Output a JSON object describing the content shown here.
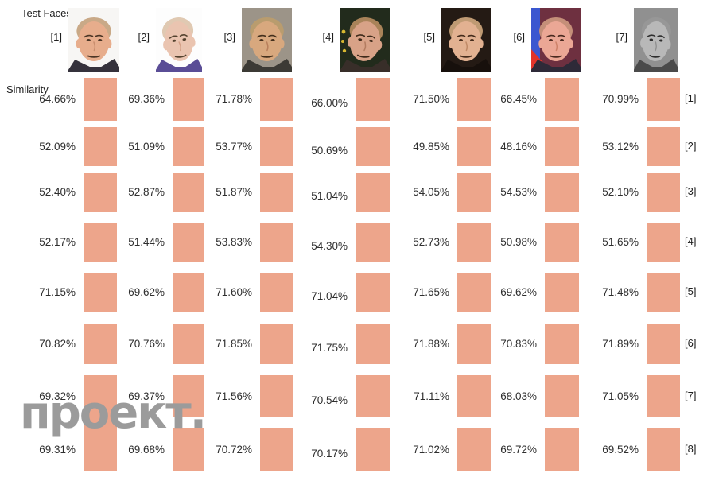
{
  "header": {
    "title": "Test Faces",
    "similarity_label": "Similarity"
  },
  "watermark": {
    "text": "проект.",
    "color": "#9b9b9b"
  },
  "colors": {
    "cell_box": "#EDA58B",
    "value_text": "#2e2e2e",
    "label_text": "#1f1f1f",
    "background": "#ffffff"
  },
  "faces": [
    {
      "label": "[1]",
      "bg": "#f7f6f4",
      "skin": "#e7ad8c",
      "hair": "#c9a987",
      "feature": "#4c3626",
      "shade": "#c98e6e",
      "suit": "#35323c",
      "tilt": 0
    },
    {
      "label": "[2]",
      "bg": "#fdfdfd",
      "skin": "#eac4b0",
      "hair": "#e0c9b2",
      "feature": "#54422f",
      "shade": "#d3a087",
      "suit": "#5a4d96",
      "tilt": -7
    },
    {
      "label": "[3]",
      "bg": "#9c9488",
      "skin": "#d8a87e",
      "hair": "#b99c6e",
      "feature": "#44301d",
      "shade": "#b9805c",
      "suit": "#3c3a35",
      "tilt": 0
    },
    {
      "label": "[4]",
      "bg": "#222b1c",
      "skin": "#d8a287",
      "hair": "#a98359",
      "feature": "#3f2b1b",
      "shade": "#b37c60",
      "suit": "#382e29",
      "tilt": 7,
      "accent_dots": "#d8b830"
    },
    {
      "label": "[5]",
      "bg": "#241a14",
      "skin": "#e2b191",
      "hair": "#bf9a73",
      "feature": "#452c1c",
      "shade": "#c08a67",
      "suit": "#17100c",
      "tilt": 0
    },
    {
      "label": "[6]",
      "bg": "#6e3040",
      "side": "#3b57d0",
      "accent": "#e2342b",
      "skin": "#eba795",
      "hair": "#c58f79",
      "feature": "#4a2a20",
      "shade": "#ce8269",
      "suit": "#2e2a38",
      "tilt": 0
    },
    {
      "label": "[7]",
      "bg": "#909090",
      "skin": "#b8b8b8",
      "hair": "#979797",
      "feature": "#2e2e2e",
      "shade": "#8f8f8f",
      "suit": "#4a4a4a",
      "tilt": 4
    }
  ],
  "row_labels": [
    "[1]",
    "[2]",
    "[3]",
    "[4]",
    "[5]",
    "[6]",
    "[7]",
    "[8]"
  ],
  "chart_data": {
    "type": "table",
    "title": "Test Faces",
    "row_axis_label": "Similarity",
    "columns": [
      "[1]",
      "[2]",
      "[3]",
      "[4]",
      "[5]",
      "[6]",
      "[7]"
    ],
    "rows": [
      "[1]",
      "[2]",
      "[3]",
      "[4]",
      "[5]",
      "[6]",
      "[7]",
      "[8]"
    ],
    "value_unit": "%",
    "values_percent": [
      [
        64.66,
        69.36,
        71.78,
        66.0,
        71.5,
        66.45,
        70.99
      ],
      [
        52.09,
        51.09,
        53.77,
        50.69,
        49.85,
        48.16,
        53.12
      ],
      [
        52.4,
        52.87,
        51.87,
        51.04,
        54.05,
        54.53,
        52.1
      ],
      [
        52.17,
        51.44,
        53.83,
        54.3,
        52.73,
        50.98,
        51.65
      ],
      [
        71.15,
        69.62,
        71.6,
        71.04,
        71.65,
        69.62,
        71.48
      ],
      [
        70.82,
        70.76,
        71.85,
        71.75,
        71.88,
        70.83,
        71.89
      ],
      [
        69.32,
        69.37,
        71.56,
        70.54,
        71.11,
        68.03,
        71.05
      ],
      [
        69.31,
        69.68,
        70.72,
        70.17,
        71.02,
        69.72,
        69.52
      ]
    ]
  }
}
